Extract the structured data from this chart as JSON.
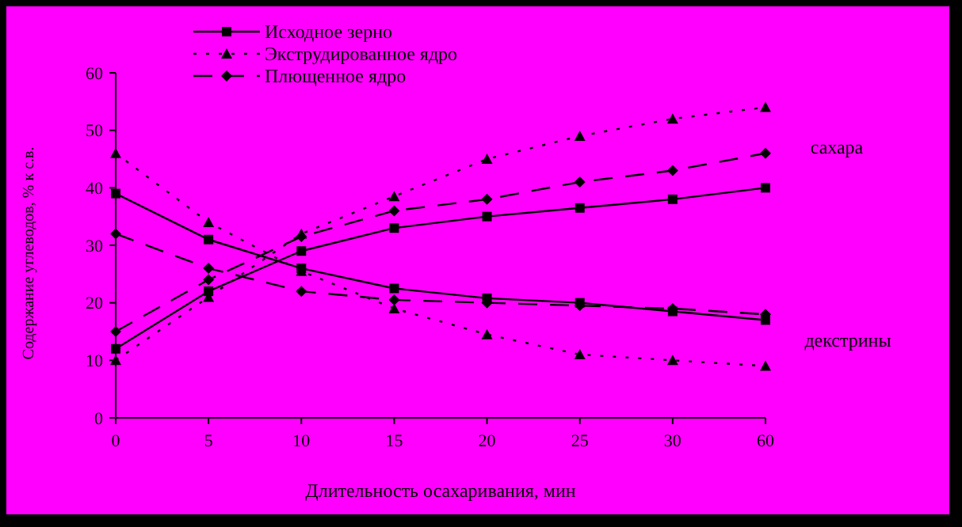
{
  "chart_data": {
    "type": "line",
    "xlabel": "Длительность осахаривания, мин",
    "ylabel": "Содержание углеводов, % к с.в.",
    "categories": [
      "0",
      "5",
      "10",
      "15",
      "20",
      "25",
      "30",
      "60"
    ],
    "ylim": [
      0,
      60
    ],
    "yticks": [
      0,
      10,
      20,
      30,
      40,
      50,
      60
    ],
    "grid": false,
    "legend": "top",
    "annotations": [
      "сахара",
      "декстрины"
    ],
    "series": [
      {
        "name": "Исходное зерно",
        "color": "#000000",
        "marker": "square",
        "line_style": "solid",
        "values": [
          12,
          22,
          29,
          33,
          35,
          36.5,
          38,
          40
        ]
      },
      {
        "name": "Экструдированное ядро",
        "color": "#000000",
        "marker": "triangle",
        "line_style": "dotted",
        "values": [
          10,
          21,
          32,
          38.5,
          45,
          49,
          52,
          54
        ]
      },
      {
        "name": "Плющенное ядро",
        "color": "#000000",
        "marker": "diamond",
        "line_style": "dashed",
        "values": [
          15,
          24,
          31.5,
          36,
          38,
          41,
          43,
          46
        ]
      },
      {
        "color": "#000000",
        "marker": "square",
        "line_style": "solid",
        "values": [
          39,
          31,
          26,
          22.5,
          20.8,
          20,
          18.5,
          17
        ]
      },
      {
        "color": "#000000",
        "marker": "triangle",
        "line_style": "dotted",
        "values": [
          46,
          34,
          25.5,
          19,
          14.5,
          11,
          10,
          9
        ]
      },
      {
        "color": "#000000",
        "marker": "diamond",
        "line_style": "dashed",
        "values": [
          32,
          26,
          22,
          20.5,
          20,
          19.5,
          19,
          18
        ]
      }
    ]
  }
}
